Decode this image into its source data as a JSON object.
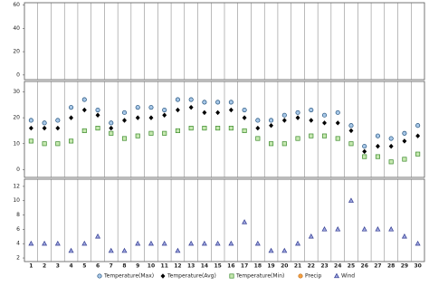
{
  "chart_data": [
    {
      "type": "scatter",
      "ylim": [
        -4,
        62
      ],
      "yticks": [
        0,
        20,
        40,
        60
      ],
      "series": [
        {
          "name": "Precip",
          "color": "#f5a040",
          "stroke": "#c07020",
          "marker": "circle",
          "values": [
            null,
            null,
            null,
            null,
            null,
            null,
            null,
            null,
            null,
            null,
            null,
            null,
            null,
            null,
            null,
            null,
            null,
            null,
            null,
            null,
            null,
            null,
            null,
            null,
            null,
            null,
            null,
            null,
            null,
            null
          ]
        }
      ]
    },
    {
      "type": "scatter",
      "ylim": [
        -3,
        34
      ],
      "yticks": [
        0,
        10,
        20,
        30
      ],
      "series": [
        {
          "name": "Temperature(Max)",
          "color": "#a8c8e8",
          "stroke": "#1f4e79",
          "marker": "circle",
          "values": [
            19,
            18,
            19,
            24,
            27,
            23,
            18,
            22,
            24,
            24,
            23,
            27,
            27,
            26,
            26,
            26,
            23,
            19,
            19,
            21,
            22,
            23,
            21,
            22,
            17,
            9,
            13,
            12,
            14,
            17
          ]
        },
        {
          "name": "Temperature(Avg)",
          "color": "#000000",
          "stroke": "#000000",
          "marker": "diamond",
          "values": [
            16,
            16,
            16,
            20,
            23,
            21,
            16,
            19,
            20,
            20,
            21,
            23,
            24,
            22,
            22,
            23,
            20,
            16,
            17,
            19,
            20,
            19,
            18,
            18,
            15,
            7,
            9,
            9,
            11,
            13
          ]
        },
        {
          "name": "Temperature(Min)",
          "color": "#c6e8b0",
          "stroke": "#3a8a2a",
          "marker": "square",
          "values": [
            11,
            10,
            10,
            11,
            15,
            16,
            14,
            12,
            13,
            14,
            14,
            15,
            16,
            16,
            16,
            16,
            15,
            12,
            10,
            10,
            12,
            13,
            13,
            12,
            10,
            5,
            5,
            3,
            4,
            6
          ]
        }
      ]
    },
    {
      "type": "scatter",
      "ylim": [
        1.5,
        13
      ],
      "yticks": [
        2,
        4,
        6,
        8,
        10,
        12
      ],
      "categories": [
        "1",
        "2",
        "3",
        "4",
        "5",
        "6",
        "7",
        "8",
        "9",
        "10",
        "11",
        "12",
        "13",
        "14",
        "15",
        "16",
        "17",
        "18",
        "19",
        "20",
        "21",
        "22",
        "23",
        "24",
        "25",
        "26",
        "27",
        "28",
        "29",
        "30"
      ],
      "series": [
        {
          "name": "Wind",
          "color": "#a0a8e0",
          "stroke": "#303a90",
          "marker": "triangle",
          "values": [
            4,
            4,
            4,
            3,
            4,
            5,
            3,
            3,
            4,
            4,
            4,
            3,
            4,
            4,
            4,
            4,
            7,
            4,
            3,
            3,
            4,
            5,
            6,
            6,
            10,
            6,
            6,
            6,
            5,
            4
          ]
        }
      ]
    }
  ]
}
